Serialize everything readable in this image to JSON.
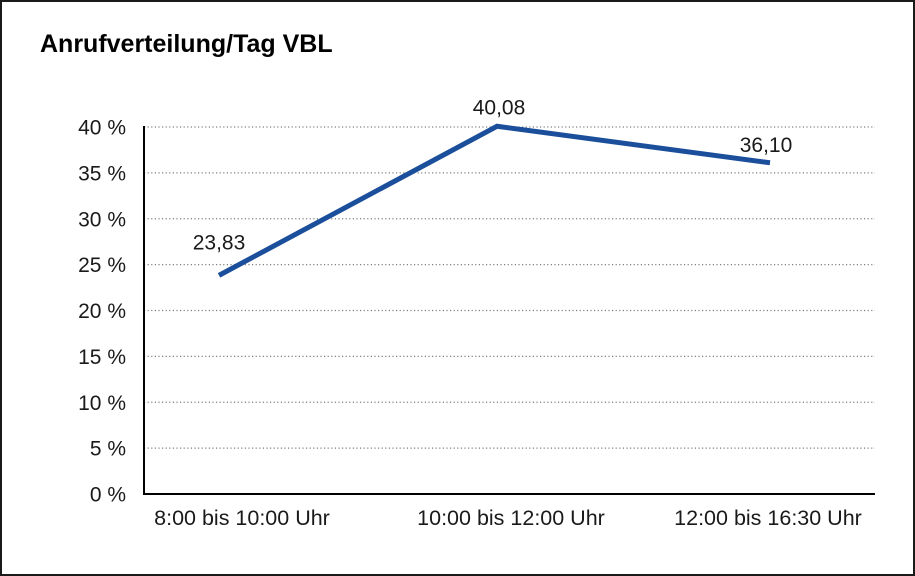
{
  "chart_data": {
    "type": "line",
    "title": "Anrufverteilung/Tag VBL",
    "categories": [
      "8:00 bis 10:00 Uhr",
      "10:00 bis 12:00 Uhr",
      "12:00 bis 16:30 Uhr"
    ],
    "values": [
      23.83,
      40.08,
      36.1
    ],
    "value_labels": [
      "23,83",
      "40,08",
      "36,10"
    ],
    "xlabel": "",
    "ylabel": "",
    "ylim": [
      0,
      40
    ],
    "y_tick_step": 5,
    "y_ticks": [
      {
        "value": 0,
        "label": "0 %"
      },
      {
        "value": 5,
        "label": "5 %"
      },
      {
        "value": 10,
        "label": "10 %"
      },
      {
        "value": 15,
        "label": "15 %"
      },
      {
        "value": 20,
        "label": "20 %"
      },
      {
        "value": 25,
        "label": "25 %"
      },
      {
        "value": 30,
        "label": "30 %"
      },
      {
        "value": 35,
        "label": "35 %"
      },
      {
        "value": 40,
        "label": "40 %"
      }
    ],
    "grid": "horizontal-dotted",
    "legend": "none",
    "colors": {
      "line": "#1b4f9b",
      "axis": "#000000",
      "gridline": "#7f7f7f",
      "text": "#1a1a1a",
      "background": "#ffffff",
      "frame_border": "#1a1a1a"
    }
  }
}
